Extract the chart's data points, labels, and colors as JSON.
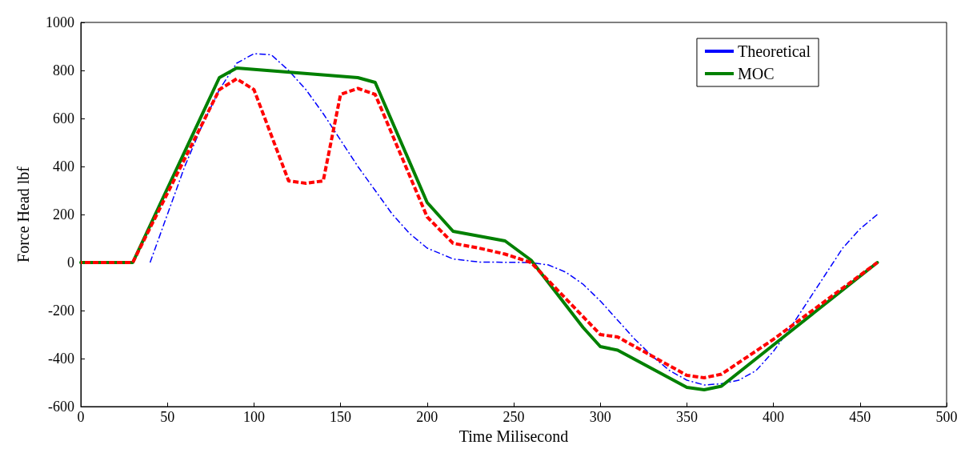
{
  "chart_data": {
    "type": "line",
    "xlabel": "Time Milisecond",
    "ylabel": "Force Head lbf",
    "xlim": [
      0,
      500
    ],
    "xticks": [
      0,
      50,
      100,
      150,
      200,
      250,
      300,
      350,
      400,
      450,
      500
    ],
    "ylim": [
      -600,
      1000
    ],
    "yticks": [
      -600,
      -400,
      -200,
      0,
      200,
      400,
      600,
      800,
      1000
    ],
    "grid": false,
    "legend": "top right",
    "marker": "none",
    "series": [
      {
        "color": "#ff0000",
        "line_style": "dashed",
        "x": [
          0,
          30,
          80,
          90,
          100,
          120,
          130,
          140,
          150,
          160,
          170,
          200,
          215,
          230,
          245,
          260,
          280,
          300,
          310,
          350,
          360,
          370,
          400,
          460
        ],
        "values": [
          0,
          0,
          720,
          765,
          720,
          340,
          330,
          340,
          700,
          725,
          700,
          190,
          80,
          60,
          35,
          0,
          -150,
          -300,
          -310,
          -470,
          -480,
          -465,
          -320,
          0
        ]
      },
      {
        "name": "Theoretical",
        "color": "#0000ff",
        "line_style": "dashdot",
        "x": [
          40,
          50,
          60,
          70,
          80,
          90,
          100,
          110,
          120,
          130,
          140,
          150,
          160,
          170,
          180,
          190,
          200,
          215,
          230,
          260,
          270,
          280,
          290,
          300,
          310,
          320,
          330,
          340,
          350,
          360,
          370,
          380,
          390,
          400,
          410,
          420,
          430,
          440,
          450,
          460
        ],
        "values": [
          0,
          200,
          400,
          570,
          720,
          830,
          870,
          865,
          800,
          720,
          620,
          510,
          400,
          300,
          200,
          120,
          60,
          15,
          2,
          0,
          -10,
          -40,
          -90,
          -160,
          -240,
          -320,
          -390,
          -450,
          -490,
          -510,
          -505,
          -490,
          -450,
          -370,
          -270,
          -160,
          -50,
          60,
          140,
          200
        ]
      },
      {
        "name": "MOC",
        "color": "#008000",
        "line_style": "solid",
        "x": [
          0,
          30,
          80,
          90,
          160,
          170,
          200,
          215,
          245,
          260,
          290,
          300,
          310,
          350,
          360,
          370,
          460
        ],
        "values": [
          0,
          0,
          770,
          810,
          770,
          750,
          250,
          130,
          90,
          10,
          -270,
          -350,
          -365,
          -520,
          -530,
          -515,
          0
        ]
      }
    ]
  }
}
